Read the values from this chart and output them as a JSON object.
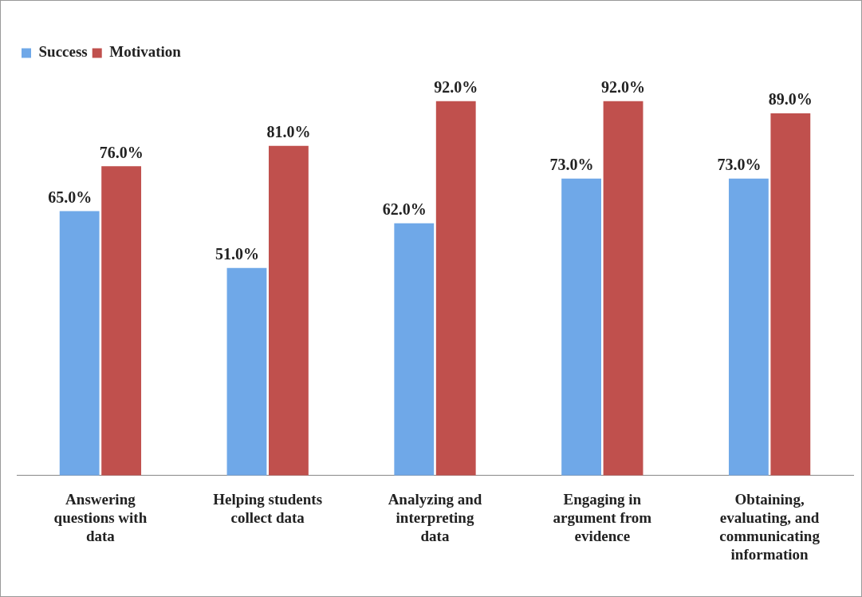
{
  "chart_data": {
    "type": "bar",
    "categories": [
      "Answering questions with data",
      "Helping students collect data",
      "Analyzing and interpreting data",
      "Engaging in argument from evidence",
      "Obtaining, evaluating, and communicating information"
    ],
    "series": [
      {
        "name": "Success",
        "color": "#6fa8e8",
        "values": [
          65,
          51,
          62,
          73,
          73
        ],
        "value_labels": [
          "65.0%",
          "51.0%",
          "62.0%",
          "73.0%",
          "73.0%"
        ]
      },
      {
        "name": "Motivation",
        "color": "#c0504d",
        "values": [
          76,
          81,
          92,
          92,
          89
        ],
        "value_labels": [
          "76.0%",
          "81.0%",
          "92.0%",
          "92.0%",
          "89.0%"
        ]
      }
    ],
    "tick_labels": "x",
    "grid": false,
    "legend": "top left"
  }
}
